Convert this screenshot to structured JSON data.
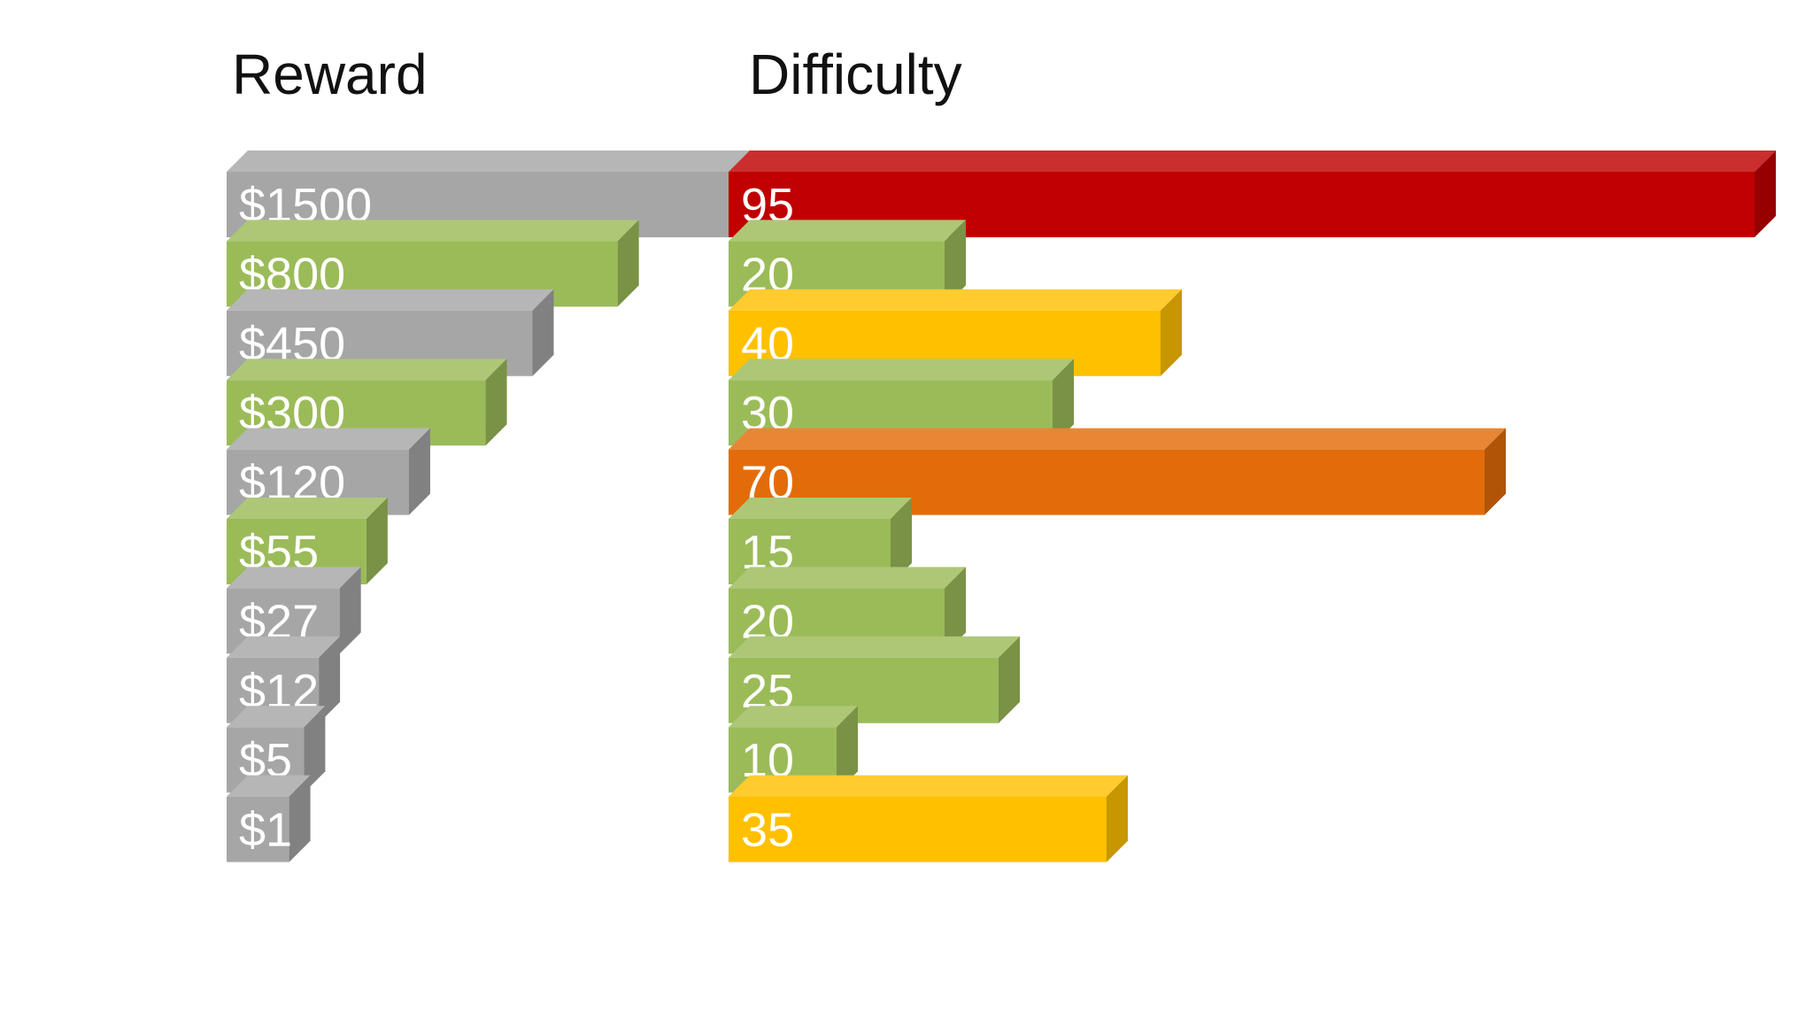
{
  "chart_data": [
    {
      "type": "bar",
      "orientation": "horizontal",
      "title": "Reward",
      "labels": [
        "$1500",
        "$800",
        "$450",
        "$300",
        "$120",
        "$55",
        "$27",
        "$12",
        "$5",
        "$1"
      ],
      "values": [
        1500,
        800,
        450,
        300,
        120,
        55,
        27,
        12,
        5,
        1
      ],
      "colors": [
        "#a6a6a6",
        "#9bbb59",
        "#a6a6a6",
        "#9bbb59",
        "#a6a6a6",
        "#9bbb59",
        "#a6a6a6",
        "#a6a6a6",
        "#a6a6a6",
        "#a6a6a6"
      ],
      "scale": "sqrt",
      "bar_style": "3d",
      "axes_visible": false
    },
    {
      "type": "bar",
      "orientation": "horizontal",
      "title": "Difficulty",
      "labels": [
        "95",
        "20",
        "40",
        "30",
        "70",
        "15",
        "20",
        "25",
        "10",
        "35"
      ],
      "values": [
        95,
        20,
        40,
        30,
        70,
        15,
        20,
        25,
        10,
        35
      ],
      "colors": [
        "#c00000",
        "#9bbb59",
        "#ffc000",
        "#9bbb59",
        "#e36c0a",
        "#9bbb59",
        "#9bbb59",
        "#9bbb59",
        "#9bbb59",
        "#ffc000"
      ],
      "scale": "linear",
      "bar_style": "3d",
      "axes_visible": false
    }
  ]
}
